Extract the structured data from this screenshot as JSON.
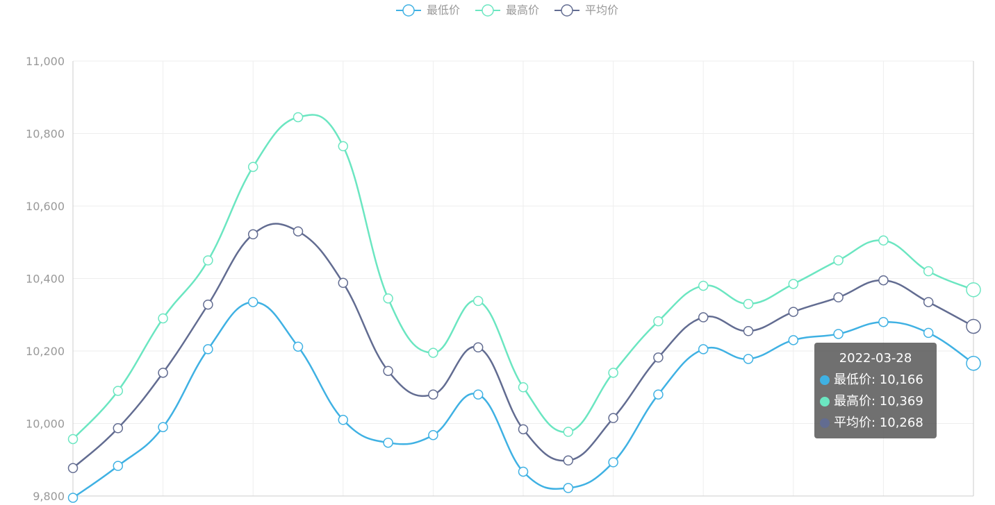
{
  "chart_data": {
    "type": "line",
    "smooth": true,
    "ylim": [
      9800,
      11000
    ],
    "ytick_step": 200,
    "ytick_labels": [
      "9,800",
      "10,000",
      "10,200",
      "10,400",
      "10,600",
      "10,800",
      "11,000"
    ],
    "grid": true,
    "legend_position": "top-center",
    "point_count": 21,
    "series": [
      {
        "name": "最低价",
        "color": "#3fb1e3",
        "values": [
          9795,
          9883,
          9990,
          10205,
          10335,
          10212,
          10010,
          9947,
          9968,
          10080,
          9867,
          9822,
          9893,
          10080,
          10205,
          10178,
          10230,
          10247,
          10280,
          10250,
          10166
        ]
      },
      {
        "name": "最高价",
        "color": "#6be6c1",
        "values": [
          9957,
          10090,
          10290,
          10450,
          10708,
          10845,
          10765,
          10345,
          10195,
          10338,
          10100,
          9977,
          10140,
          10282,
          10380,
          10330,
          10385,
          10450,
          10505,
          10420,
          10369
        ]
      },
      {
        "name": "平均价",
        "color": "#626c91",
        "values": [
          9877,
          9987,
          10140,
          10328,
          10522,
          10530,
          10388,
          10145,
          10080,
          10210,
          9984,
          9898,
          10015,
          10182,
          10293,
          10255,
          10308,
          10348,
          10395,
          10335,
          10268
        ]
      }
    ]
  },
  "tooltip": {
    "title": "2022-03-28",
    "rows": [
      {
        "label": "最低价: 10,166",
        "color": "#3fb1e3"
      },
      {
        "label": "最高价: 10,369",
        "color": "#6be6c1"
      },
      {
        "label": "平均价: 10,268",
        "color": "#626c91"
      }
    ]
  }
}
